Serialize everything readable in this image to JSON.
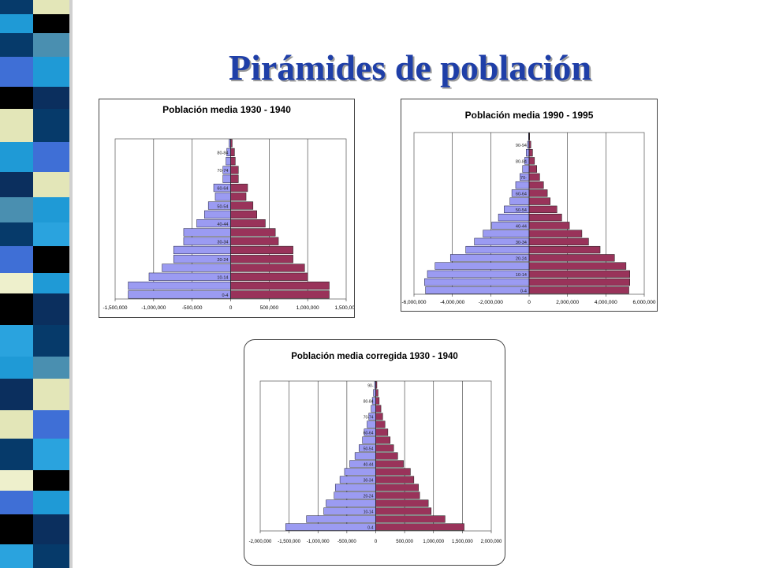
{
  "slide": {
    "title": "Pirámides de población"
  },
  "theme": {
    "male_color": "#9b9bf2",
    "female_color": "#99335a",
    "stripe_colors": [
      "#1f9ad6",
      "#063a6a",
      "#e3e6b8",
      "#000000",
      "#4a8fb0",
      "#3f6fd6",
      "#0b2f5e",
      "#eef0cc",
      "#2aa3de"
    ]
  },
  "chart_data": [
    {
      "type": "bar",
      "orientation": "horizontal-pyramid",
      "title": "Población media 1930 - 1940",
      "xlim": [
        -1500000,
        1500000
      ],
      "xticks": [
        -1500000,
        -1000000,
        -500000,
        0,
        500000,
        1000000,
        1500000
      ],
      "xtick_labels": [
        "-1,500,000",
        "-1,000,000",
        "-500,000",
        "0",
        "500,000",
        "1,000,000",
        "1,500,000"
      ],
      "grid": true,
      "age_groups": [
        "0-4",
        "5-9",
        "10-14",
        "15-19",
        "20-24",
        "25-29",
        "30-34",
        "35-39",
        "40-44",
        "45-49",
        "50-54",
        "55-59",
        "60-64",
        "65-69",
        "70-74",
        "75-79",
        "80-84",
        "85-89"
      ],
      "age_labels_shown": [
        "0-4",
        "",
        "10-14",
        "",
        "20-24",
        "",
        "30-34",
        "",
        "40-44",
        "",
        "50-54",
        "",
        "60-64",
        "",
        "70-74",
        "",
        "80-84",
        ""
      ],
      "series": [
        {
          "values": [
            -1330000,
            -1330000,
            -1060000,
            -890000,
            -740000,
            -740000,
            -610000,
            -610000,
            -440000,
            -340000,
            -290000,
            -200000,
            -220000,
            -100000,
            -100000,
            -60000,
            -50000,
            -20000
          ]
        },
        {
          "values": [
            1280000,
            1280000,
            1000000,
            960000,
            810000,
            810000,
            620000,
            580000,
            450000,
            340000,
            290000,
            200000,
            220000,
            100000,
            100000,
            60000,
            50000,
            20000
          ]
        }
      ]
    },
    {
      "type": "bar",
      "orientation": "horizontal-pyramid",
      "title": "Población media 1990 - 1995",
      "xlim": [
        -6000000,
        6000000
      ],
      "xticks": [
        -6000000,
        -4000000,
        -2000000,
        0,
        2000000,
        4000000,
        6000000
      ],
      "xtick_labels": [
        "-6,000,000",
        "-4,000,000",
        "-2,000,000",
        "0",
        "2,000,000",
        "4,000,000",
        "6,000,000"
      ],
      "grid": true,
      "age_groups": [
        "0-4",
        "5-9",
        "10-14",
        "15-19",
        "20-24",
        "25-29",
        "30-34",
        "35-39",
        "40-44",
        "45-49",
        "50-54",
        "55-59",
        "60-64",
        "65-69",
        "70-74",
        "75-79",
        "80-84",
        "85-89",
        "90-94",
        "95-99"
      ],
      "age_labels_shown": [
        "0-4",
        "",
        "10-14",
        "",
        "20-24",
        "",
        "30-34",
        "",
        "40-44",
        "",
        "50-54",
        "",
        "60-64",
        "",
        "70-",
        "",
        "80-84",
        "",
        "90-94",
        ""
      ],
      "series": [
        {
          "values": [
            -5400000,
            -5450000,
            -5300000,
            -4900000,
            -4100000,
            -3300000,
            -2850000,
            -2400000,
            -1950000,
            -1600000,
            -1300000,
            -1000000,
            -900000,
            -700000,
            -480000,
            -340000,
            -230000,
            -150000,
            -80000,
            -30000
          ]
        },
        {
          "values": [
            5200000,
            5250000,
            5250000,
            5050000,
            4450000,
            3700000,
            3100000,
            2750000,
            2100000,
            1700000,
            1450000,
            1100000,
            950000,
            750000,
            550000,
            400000,
            280000,
            180000,
            90000,
            30000
          ]
        }
      ]
    },
    {
      "type": "bar",
      "orientation": "horizontal-pyramid",
      "title": "Población media corregida 1930 - 1940",
      "xlim": [
        -2000000,
        2000000
      ],
      "xticks": [
        -2000000,
        -1500000,
        -1000000,
        -500000,
        0,
        500000,
        1000000,
        1500000,
        2000000
      ],
      "xtick_labels": [
        "-2,000,000",
        "-1,500,000",
        "-1,000,000",
        "-500,000",
        "0",
        "500,000",
        "1,000,000",
        "1,500,000",
        "2,000,000"
      ],
      "grid": true,
      "age_groups": [
        "0-4",
        "5-9",
        "10-14",
        "15-19",
        "20-24",
        "25-29",
        "30-34",
        "35-39",
        "40-44",
        "45-49",
        "50-54",
        "55-59",
        "60-64",
        "65-69",
        "70-74",
        "75-79",
        "80-84",
        "85-89",
        "90-94"
      ],
      "age_labels_shown": [
        "0-4",
        "",
        "10-14",
        "",
        "20-24",
        "",
        "30-34",
        "",
        "40-44",
        "",
        "50-54",
        "",
        "60-64",
        "",
        "70-74",
        "",
        "80-84",
        "",
        "90-"
      ],
      "series": [
        {
          "values": [
            -1560000,
            -1200000,
            -900000,
            -860000,
            -720000,
            -700000,
            -620000,
            -540000,
            -450000,
            -360000,
            -290000,
            -230000,
            -200000,
            -150000,
            -120000,
            -80000,
            -60000,
            -40000,
            -20000
          ]
        },
        {
          "values": [
            1530000,
            1200000,
            960000,
            910000,
            760000,
            740000,
            660000,
            600000,
            480000,
            380000,
            310000,
            250000,
            210000,
            160000,
            120000,
            90000,
            60000,
            40000,
            20000
          ]
        }
      ]
    }
  ]
}
